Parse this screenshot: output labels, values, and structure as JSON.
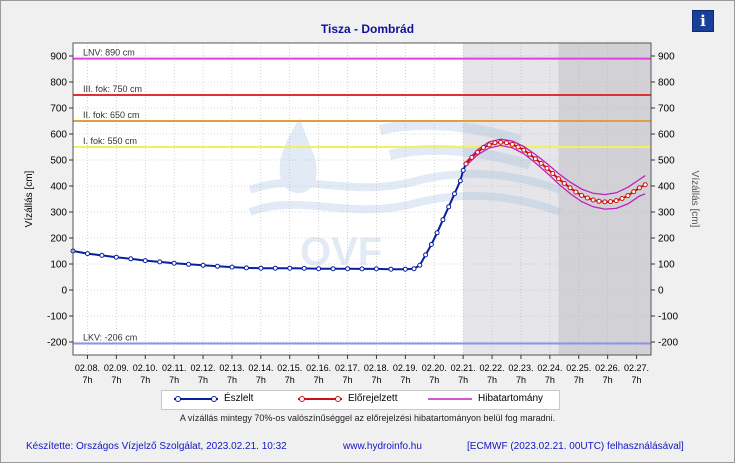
{
  "chart_data": {
    "type": "line",
    "title": "Tisza - Dombrád",
    "ylabel_left": "Vízállás [cm]",
    "ylabel_right": "Vízállás [cm]",
    "ylim": [
      -250,
      950
    ],
    "yticks": [
      -200,
      -100,
      0,
      100,
      200,
      300,
      400,
      500,
      600,
      700,
      800,
      900
    ],
    "xlim_days": [
      7.5,
      27.5
    ],
    "x_ticks": [
      {
        "date": "02.08.",
        "hour": "7h"
      },
      {
        "date": "02.09.",
        "hour": "7h"
      },
      {
        "date": "02.10.",
        "hour": "7h"
      },
      {
        "date": "02.11.",
        "hour": "7h"
      },
      {
        "date": "02.12.",
        "hour": "7h"
      },
      {
        "date": "02.13.",
        "hour": "7h"
      },
      {
        "date": "02.14.",
        "hour": "7h"
      },
      {
        "date": "02.15.",
        "hour": "7h"
      },
      {
        "date": "02.16.",
        "hour": "7h"
      },
      {
        "date": "02.17.",
        "hour": "7h"
      },
      {
        "date": "02.18.",
        "hour": "7h"
      },
      {
        "date": "02.19.",
        "hour": "7h"
      },
      {
        "date": "02.20.",
        "hour": "7h"
      },
      {
        "date": "02.21.",
        "hour": "7h"
      },
      {
        "date": "02.22.",
        "hour": "7h"
      },
      {
        "date": "02.23.",
        "hour": "7h"
      },
      {
        "date": "02.24.",
        "hour": "7h"
      },
      {
        "date": "02.25.",
        "hour": "7h"
      },
      {
        "date": "02.26.",
        "hour": "7h"
      },
      {
        "date": "02.27.",
        "hour": "7h"
      }
    ],
    "forecast_region_days": [
      21.0,
      27.5
    ],
    "late_forecast_region_days": [
      24.3,
      27.5
    ],
    "threshold_lines": [
      {
        "label": "LNV: 890 cm",
        "value": 890,
        "color": "#e040e0"
      },
      {
        "label": "III. fok: 750 cm",
        "value": 750,
        "color": "#e03030"
      },
      {
        "label": "II. fok: 650 cm",
        "value": 650,
        "color": "#e0a040"
      },
      {
        "label": "I. fok: 550 cm",
        "value": 550,
        "color": "#f0f060"
      },
      {
        "label": "LKV: -206 cm",
        "value": -206,
        "color": "#9090f0"
      }
    ],
    "series": [
      {
        "name": "Észlelt",
        "color": "#0a1fa0",
        "points": [
          [
            7.5,
            150
          ],
          [
            8.0,
            140
          ],
          [
            8.5,
            133
          ],
          [
            9.0,
            126
          ],
          [
            9.5,
            120
          ],
          [
            10.0,
            113
          ],
          [
            10.5,
            108
          ],
          [
            11.0,
            103
          ],
          [
            11.5,
            99
          ],
          [
            12.0,
            95
          ],
          [
            12.5,
            91
          ],
          [
            13.0,
            88
          ],
          [
            13.5,
            85
          ],
          [
            14.0,
            84
          ],
          [
            14.5,
            84
          ],
          [
            15.0,
            84
          ],
          [
            15.5,
            83
          ],
          [
            16.0,
            82
          ],
          [
            16.5,
            82
          ],
          [
            17.0,
            82
          ],
          [
            17.5,
            81
          ],
          [
            18.0,
            81
          ],
          [
            18.5,
            80
          ],
          [
            19.0,
            80
          ],
          [
            19.3,
            82
          ],
          [
            19.5,
            95
          ],
          [
            19.7,
            135
          ],
          [
            19.9,
            175
          ],
          [
            20.1,
            220
          ],
          [
            20.3,
            270
          ],
          [
            20.5,
            320
          ],
          [
            20.7,
            370
          ],
          [
            20.9,
            420
          ],
          [
            21.0,
            460
          ],
          [
            21.1,
            485
          ]
        ]
      },
      {
        "name": "Előrejelzett",
        "color": "#d01010",
        "points": [
          [
            21.1,
            485
          ],
          [
            21.3,
            510
          ],
          [
            21.5,
            530
          ],
          [
            21.7,
            548
          ],
          [
            21.9,
            558
          ],
          [
            22.1,
            566
          ],
          [
            22.3,
            568
          ],
          [
            22.5,
            566
          ],
          [
            22.7,
            560
          ],
          [
            22.9,
            550
          ],
          [
            23.1,
            538
          ],
          [
            23.3,
            522
          ],
          [
            23.5,
            505
          ],
          [
            23.7,
            487
          ],
          [
            23.9,
            468
          ],
          [
            24.1,
            448
          ],
          [
            24.3,
            428
          ],
          [
            24.5,
            410
          ],
          [
            24.7,
            393
          ],
          [
            24.9,
            377
          ],
          [
            25.1,
            364
          ],
          [
            25.3,
            354
          ],
          [
            25.5,
            346
          ],
          [
            25.7,
            341
          ],
          [
            25.9,
            339
          ],
          [
            26.1,
            340
          ],
          [
            26.3,
            344
          ],
          [
            26.5,
            352
          ],
          [
            26.7,
            363
          ],
          [
            26.9,
            378
          ],
          [
            27.1,
            393
          ],
          [
            27.3,
            405
          ]
        ]
      },
      {
        "name": "Hibatartomány",
        "color": "#c020c0",
        "upper": [
          [
            21.1,
            492
          ],
          [
            21.5,
            540
          ],
          [
            21.9,
            570
          ],
          [
            22.3,
            580
          ],
          [
            22.7,
            573
          ],
          [
            23.1,
            552
          ],
          [
            23.5,
            521
          ],
          [
            23.9,
            486
          ],
          [
            24.3,
            448
          ],
          [
            24.7,
            415
          ],
          [
            25.1,
            388
          ],
          [
            25.5,
            372
          ],
          [
            25.9,
            367
          ],
          [
            26.3,
            374
          ],
          [
            26.7,
            395
          ],
          [
            27.1,
            425
          ],
          [
            27.3,
            440
          ]
        ],
        "lower": [
          [
            21.1,
            478
          ],
          [
            21.5,
            520
          ],
          [
            21.9,
            546
          ],
          [
            22.3,
            556
          ],
          [
            22.7,
            547
          ],
          [
            23.1,
            524
          ],
          [
            23.5,
            489
          ],
          [
            23.9,
            450
          ],
          [
            24.3,
            408
          ],
          [
            24.7,
            371
          ],
          [
            25.1,
            340
          ],
          [
            25.5,
            320
          ],
          [
            25.9,
            311
          ],
          [
            26.3,
            314
          ],
          [
            26.7,
            331
          ],
          [
            27.1,
            361
          ],
          [
            27.3,
            370
          ]
        ]
      }
    ]
  },
  "legend": {
    "observed": "Észlelt",
    "forecast": "Előrejelzett",
    "uncertainty": "Hibatartomány"
  },
  "note": "A vízállás mintegy 70%-os valószínűséggel az előrejelzési hibatartományon belül fog maradni.",
  "footer": {
    "author": "Készítette: Országos Vízjelző Szolgálat, 2023.02.21. 10:32",
    "website": "www.hydroinfo.hu",
    "model": "[ECMWF (2023.02.21. 00UTC) felhasználásával]"
  },
  "info_icon_glyph": "i",
  "watermark_text": "OVF"
}
